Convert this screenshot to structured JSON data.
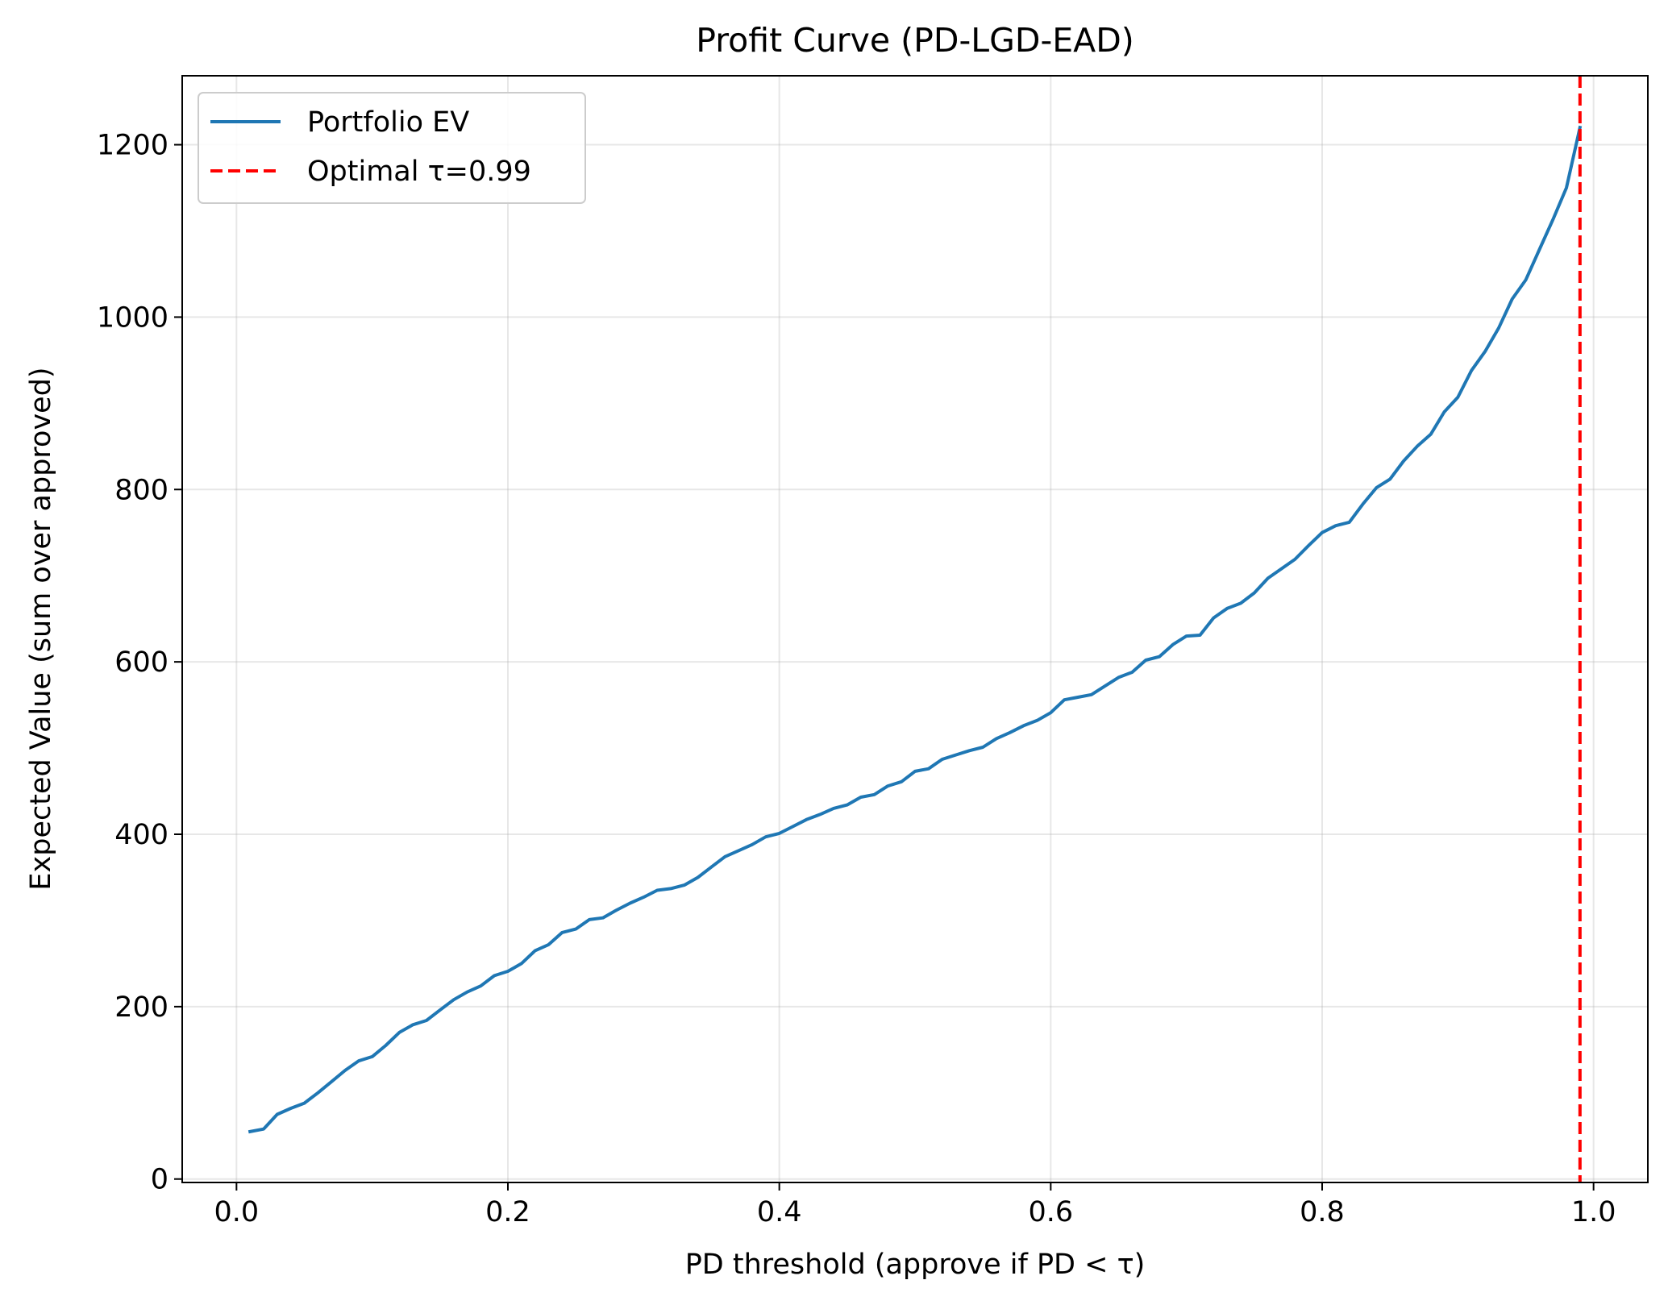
{
  "chart_data": {
    "type": "line",
    "title": "Profit Curve (PD-LGD-EAD)",
    "xlabel": "PD threshold (approve if PD < τ)",
    "ylabel": "Expected Value (sum over approved)",
    "xlim": [
      -0.04,
      1.04
    ],
    "ylim": [
      -4,
      1280
    ],
    "x_ticks": [
      0.0,
      0.2,
      0.4,
      0.6,
      0.8,
      1.0
    ],
    "x_tick_labels": [
      "0.0",
      "0.2",
      "0.4",
      "0.6",
      "0.8",
      "1.0"
    ],
    "y_ticks": [
      0,
      200,
      400,
      600,
      800,
      1000,
      1200
    ],
    "y_tick_labels": [
      "0",
      "200",
      "400",
      "600",
      "800",
      "1000",
      "1200"
    ],
    "grid": true,
    "legend_position": "top-left",
    "series": [
      {
        "name": "Portfolio EV",
        "color": "#1f77b4",
        "style": "solid",
        "x": [
          0.01,
          0.02,
          0.03,
          0.04,
          0.05,
          0.06,
          0.07,
          0.08,
          0.09,
          0.1,
          0.11,
          0.12,
          0.13,
          0.14,
          0.15,
          0.16,
          0.17,
          0.18,
          0.19,
          0.2,
          0.21,
          0.22,
          0.23,
          0.24,
          0.25,
          0.26,
          0.27,
          0.28,
          0.29,
          0.3,
          0.31,
          0.32,
          0.33,
          0.34,
          0.35,
          0.36,
          0.37,
          0.38,
          0.39,
          0.4,
          0.41,
          0.42,
          0.43,
          0.44,
          0.45,
          0.46,
          0.47,
          0.48,
          0.49,
          0.5,
          0.51,
          0.52,
          0.53,
          0.54,
          0.55,
          0.56,
          0.57,
          0.58,
          0.59,
          0.6,
          0.61,
          0.62,
          0.63,
          0.64,
          0.65,
          0.66,
          0.67,
          0.68,
          0.69,
          0.7,
          0.71,
          0.72,
          0.73,
          0.74,
          0.75,
          0.76,
          0.77,
          0.78,
          0.79,
          0.8,
          0.81,
          0.82,
          0.83,
          0.84,
          0.85,
          0.86,
          0.87,
          0.88,
          0.89,
          0.9,
          0.91,
          0.92,
          0.93,
          0.94,
          0.95,
          0.96,
          0.97,
          0.98,
          0.99
        ],
        "y": [
          55,
          58,
          75,
          82,
          88,
          100,
          113,
          126,
          137,
          142,
          155,
          170,
          179,
          184,
          196,
          208,
          217,
          224,
          236,
          241,
          250,
          265,
          272,
          286,
          290,
          301,
          303,
          312,
          320,
          327,
          335,
          337,
          341,
          350,
          362,
          374,
          381,
          388,
          397,
          401,
          409,
          417,
          423,
          430,
          434,
          443,
          446,
          456,
          461,
          473,
          476,
          487,
          492,
          497,
          501,
          511,
          518,
          526,
          532,
          541,
          556,
          559,
          562,
          572,
          582,
          588,
          602,
          606,
          620,
          630,
          631,
          651,
          662,
          668,
          680,
          697,
          708,
          719,
          735,
          750,
          758,
          762,
          783,
          802,
          812,
          833,
          850,
          864,
          890,
          907,
          938,
          960,
          987,
          1021,
          1043,
          1078,
          1113,
          1150,
          1220
        ]
      },
      {
        "name": "Optimal τ=0.99",
        "color": "#ff0000",
        "style": "dashed",
        "x_value": 0.99
      }
    ]
  }
}
